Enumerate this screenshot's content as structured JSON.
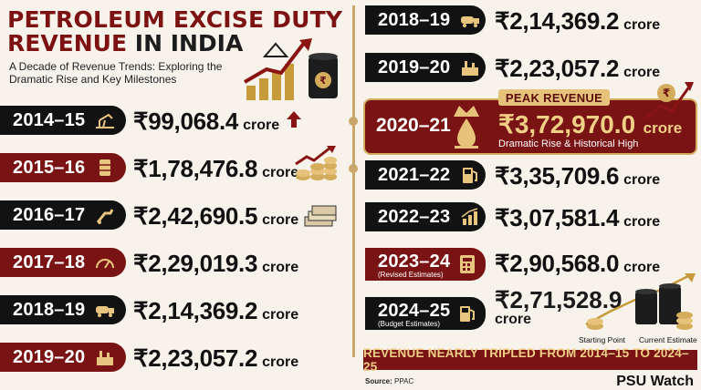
{
  "header": {
    "title_line1": "PETROLEUM EXCISE DUTY",
    "title_line2_red": "REVENUE",
    "title_line2_dark": " IN INDIA",
    "subtitle": "A Decade of Revenue Trends: Exploring the Dramatic Rise and Key Milestones"
  },
  "left_rows": [
    {
      "year": "2014–15",
      "amount": "₹99,068.4",
      "unit": "crore",
      "icon": "oil-pump-icon",
      "side_icon": "up-arrow-icon"
    },
    {
      "year": "2015–16",
      "amount": "₹1,78,476.8",
      "unit": "crore",
      "icon": "oil-barrel-icon",
      "side_icon": "coins-growth-icon"
    },
    {
      "year": "2016–17",
      "amount": "₹2,42,690.5",
      "unit": "crore",
      "icon": "fuel-nozzle-icon",
      "side_icon": "money-stack-icon"
    },
    {
      "year": "2017–18",
      "amount": "₹2,29,019.3",
      "unit": "crore",
      "icon": "speedometer-icon"
    },
    {
      "year": "2018–19",
      "amount": "₹2,14,369.2",
      "unit": "crore",
      "icon": "tanker-truck-icon"
    },
    {
      "year": "2019–20",
      "amount": "₹2,23,057.2",
      "unit": "crore",
      "icon": "refinery-icon"
    }
  ],
  "right_rows": [
    {
      "year": "2018–19",
      "amount": "₹2,14,369.2",
      "unit": "crore",
      "icon": "tanker-truck-icon"
    },
    {
      "year": "2019–20",
      "amount": "₹2,23,057.2",
      "unit": "crore",
      "icon": "refinery-icon"
    },
    {
      "year": "2021–22",
      "amount": "₹3,35,709.6",
      "unit": "crore",
      "icon": "fuel-pump-icon"
    },
    {
      "year": "2022–23",
      "amount": "₹3,07,581.4",
      "unit": "crore",
      "icon": "bar-chart-icon"
    },
    {
      "year": "2023–24",
      "note": "(Revised Estimates)",
      "amount": "₹2,90,568.0",
      "unit": "crore",
      "icon": "calculator-icon"
    },
    {
      "year": "2024–25",
      "note": "(Budget Estimates)",
      "amount": "₹2,71,528.9",
      "unit": "crore",
      "icon": "fuel-pump-icon"
    }
  ],
  "peak": {
    "tag": "PEAK REVENUE",
    "year": "2020–21",
    "amount": "₹3,72,970.0",
    "unit": "crore",
    "subtext": "Dramatic Rise & Historical High",
    "icon": "crown-drop-icon"
  },
  "labels": {
    "starting_point": "Starting Point",
    "current_estimate": "Current Estimate"
  },
  "banner": "REVENUE NEARLY TRIPLED FROM 2014–15 TO 2024–25",
  "source": {
    "label": "Source:",
    "value": "PPAC"
  },
  "brand": "PSU Watch",
  "colors": {
    "maroon": "#7a1414",
    "gold": "#d4ad5c",
    "black": "#121212",
    "background": "#f7f2ea"
  }
}
